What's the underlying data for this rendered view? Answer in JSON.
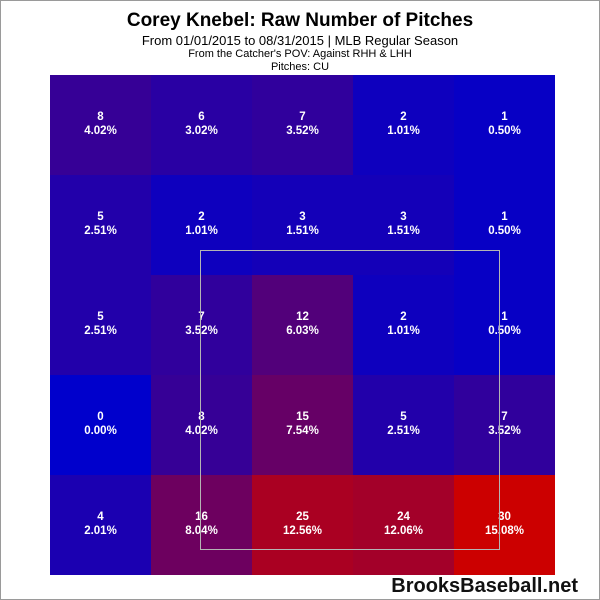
{
  "title": "Corey Knebel: Raw Number of Pitches",
  "subtitle": "From 01/01/2015 to 08/31/2015 | MLB Regular Season",
  "pov": "From the Catcher's POV:  Against RHH & LHH",
  "pitches": "Pitches:  CU",
  "brand": "BrooksBaseball.net",
  "chart_data": {
    "type": "heatmap",
    "title": "Corey Knebel: Raw Number of Pitches",
    "rows": 5,
    "cols": 5,
    "counts": [
      [
        8,
        6,
        7,
        2,
        1
      ],
      [
        5,
        2,
        3,
        3,
        1
      ],
      [
        5,
        7,
        12,
        2,
        1
      ],
      [
        0,
        8,
        15,
        5,
        7
      ],
      [
        4,
        16,
        25,
        24,
        30
      ]
    ],
    "percents": [
      [
        "4.02%",
        "3.02%",
        "3.52%",
        "1.01%",
        "0.50%"
      ],
      [
        "2.51%",
        "1.01%",
        "1.51%",
        "1.51%",
        "0.50%"
      ],
      [
        "2.51%",
        "3.52%",
        "6.03%",
        "1.01%",
        "0.50%"
      ],
      [
        "0.00%",
        "4.02%",
        "7.54%",
        "2.51%",
        "3.52%"
      ],
      [
        "2.01%",
        "8.04%",
        "12.56%",
        "12.06%",
        "15.08%"
      ]
    ],
    "color_scale": {
      "low": "#0000cc",
      "high": "#cc0000"
    }
  }
}
